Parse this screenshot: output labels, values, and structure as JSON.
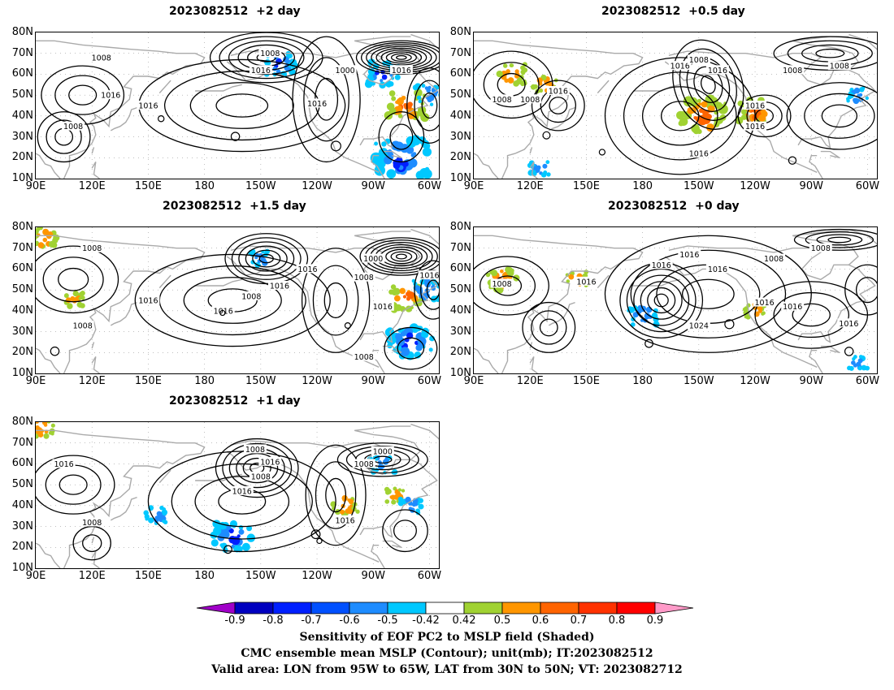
{
  "panels": [
    {
      "id": "p2",
      "title": "2023082512  +2 day",
      "contour_labels": [
        "1008",
        "1008",
        "1016",
        "1016",
        "1016",
        "1008",
        "1000",
        "1016",
        "1016"
      ],
      "sens_pos": [
        [
          -72,
          45,
          1.0
        ]
      ],
      "sens_neg": [
        [
          -75,
          20,
          1.5
        ],
        [
          -85,
          60,
          0.8
        ],
        [
          -140,
          65,
          0.7
        ],
        [
          -60,
          50,
          0.6
        ]
      ]
    },
    {
      "id": "p05",
      "title": "2023082512  +0.5 day",
      "contour_labels": [
        "1016",
        "1008",
        "1016",
        "1008",
        "1016",
        "1008",
        "1016",
        "1016",
        "1008",
        "1008",
        "1016"
      ],
      "sens_pos": [
        [
          -148,
          40,
          1.3
        ],
        [
          -120,
          42,
          0.8
        ],
        [
          110,
          60,
          0.6
        ],
        [
          128,
          55,
          0.4
        ]
      ],
      "sens_neg": [
        [
          -65,
          50,
          0.3
        ],
        [
          125,
          15,
          0.3
        ]
      ]
    },
    {
      "id": "p15",
      "title": "2023082512  +1.5 day",
      "contour_labels": [
        "1008",
        "1016",
        "1008",
        "1016",
        "1016",
        "1000",
        "1008",
        "1016",
        "1016",
        "1008",
        "1016",
        "1008"
      ],
      "sens_pos": [
        [
          -72,
          46,
          0.8
        ],
        [
          95,
          75,
          0.6
        ],
        [
          110,
          45,
          0.3
        ]
      ],
      "sens_neg": [
        [
          -70,
          25,
          1.2
        ],
        [
          -62,
          50,
          0.6
        ],
        [
          -150,
          65,
          0.3
        ]
      ]
    },
    {
      "id": "p0",
      "title": "2023082512  +0 day",
      "contour_labels": [
        "1008",
        "1016",
        "1008",
        "1016",
        "1016",
        "1016",
        "1024",
        "1016",
        "1008",
        "1016",
        "1016"
      ],
      "sens_pos": [
        [
          105,
          55,
          0.7
        ],
        [
          145,
          55,
          0.4
        ],
        [
          -120,
          40,
          0.3
        ]
      ],
      "sens_neg": [
        [
          180,
          38,
          0.6
        ],
        [
          -65,
          15,
          0.2
        ]
      ]
    },
    {
      "id": "p1",
      "title": "2023082512  +1 day",
      "contour_labels": [
        "1008",
        "1016",
        "1008",
        "1016",
        "1016",
        "1008",
        "1000",
        "1016",
        "1008"
      ],
      "sens_pos": [
        [
          93,
          77,
          0.5
        ],
        [
          -105,
          40,
          0.5
        ],
        [
          -78,
          45,
          0.3
        ]
      ],
      "sens_neg": [
        [
          -165,
          25,
          1.0
        ],
        [
          155,
          35,
          0.4
        ],
        [
          -85,
          60,
          0.5
        ],
        [
          -70,
          40,
          0.4
        ]
      ]
    }
  ],
  "axes": {
    "lat_ticks": [
      "10N",
      "20N",
      "30N",
      "40N",
      "50N",
      "60N",
      "70N",
      "80N"
    ],
    "lon_ticks": [
      "90E",
      "120E",
      "150E",
      "180",
      "150W",
      "120W",
      "90W",
      "60W"
    ],
    "lat_range": [
      10,
      80
    ],
    "lon_range": [
      90,
      305
    ]
  },
  "colorbar": {
    "levels": [
      "-0.9",
      "-0.8",
      "-0.7",
      "-0.6",
      "-0.5",
      "-0.42",
      "0.42",
      "0.5",
      "0.6",
      "0.7",
      "0.8",
      "0.9"
    ],
    "colors": [
      "#a000c8",
      "#0000c0",
      "#0020ff",
      "#0050ff",
      "#1e8cff",
      "#00c8ff",
      "#ffffff",
      "#a0d232",
      "#ff9600",
      "#ff6400",
      "#ff3200",
      "#ff0000",
      "#ff9ac8"
    ]
  },
  "captions": [
    "Sensitivity of EOF PC2 to MSLP field (Shaded)",
    "CMC ensemble mean MSLP (Contour); unit(mb); IT:2023082512",
    "Valid area: LON from 95W to 65W, LAT from 30N to 50N; VT: 2023082712"
  ]
}
